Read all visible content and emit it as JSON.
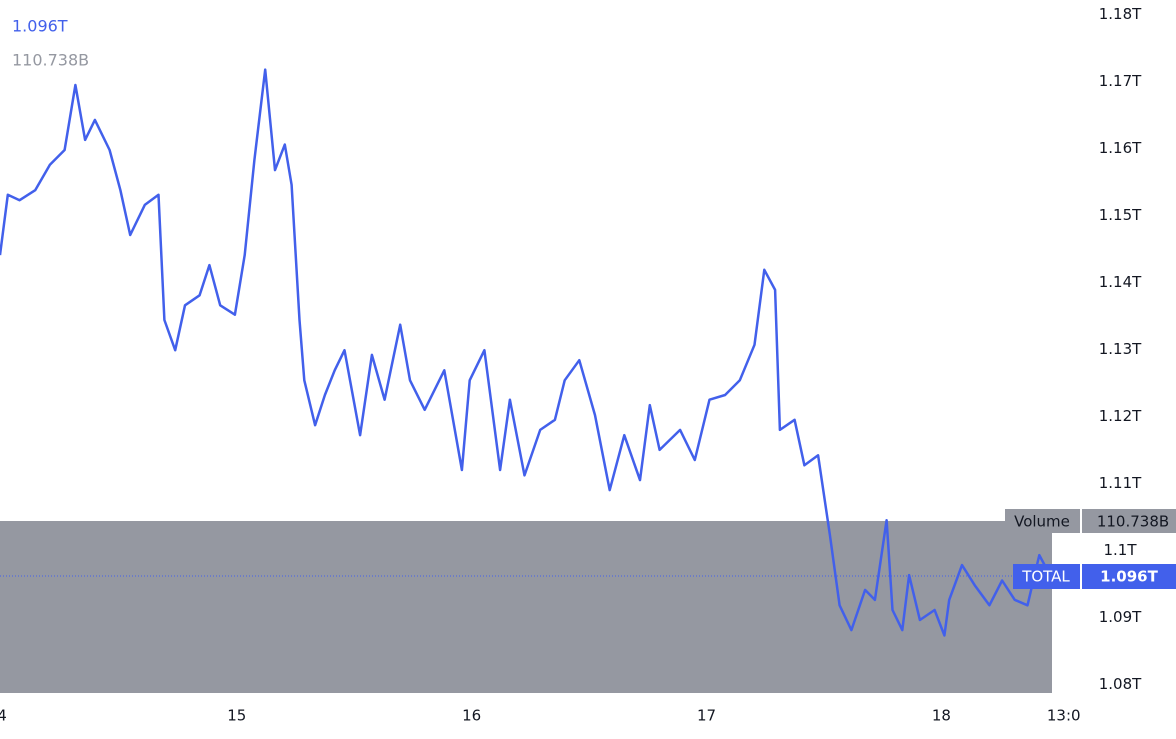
{
  "chart_data": {
    "type": "line",
    "legend_values": [
      "1.096T",
      "110.738B"
    ],
    "volume_label": {
      "name": "Volume",
      "value": "110.738B"
    },
    "price_label": {
      "name": "TOTAL",
      "value": "1.096T"
    },
    "x": [
      -0.2,
      0.6,
      1.8,
      3.4,
      4.9,
      6.4,
      7.5,
      8.5,
      9.5,
      11.0,
      12.1,
      13.1,
      14.6,
      16.0,
      16.6,
      17.7,
      18.7,
      20.2,
      21.2,
      22.3,
      23.8,
      24.8,
      25.8,
      26.9,
      27.9,
      28.9,
      29.6,
      30.4,
      30.9,
      32.0,
      33.0,
      34.0,
      35.0,
      36.6,
      37.8,
      39.1,
      40.7,
      41.7,
      43.2,
      45.2,
      47.0,
      47.8,
      49.3,
      50.9,
      51.9,
      53.4,
      55.0,
      56.5,
      57.5,
      59.0,
      60.6,
      62.1,
      63.6,
      65.2,
      66.2,
      67.2,
      69.3,
      70.8,
      72.3,
      73.9,
      75.4,
      76.9,
      77.9,
      79.0,
      79.5,
      81.0,
      82.0,
      83.4,
      84.6,
      85.6,
      86.8,
      88.2,
      89.2,
      90.4,
      91.0,
      92.0,
      92.7,
      93.8,
      95.3,
      96.3,
      96.8,
      98.1,
      99.4,
      100.9,
      102.2,
      103.5,
      104.8,
      106.0,
      107.1
    ],
    "series": [
      {
        "name": "TOTAL",
        "color": "#4260eb",
        "values": [
          1.1441,
          1.1531,
          1.1523,
          1.1538,
          1.1576,
          1.1598,
          1.1695,
          1.1613,
          1.1643,
          1.1598,
          1.1538,
          1.1471,
          1.1516,
          1.1531,
          1.1344,
          1.1299,
          1.1366,
          1.1381,
          1.1426,
          1.1366,
          1.1352,
          1.1441,
          1.1583,
          1.1718,
          1.1568,
          1.1606,
          1.1546,
          1.1344,
          1.1254,
          1.1187,
          1.1232,
          1.1269,
          1.1299,
          1.1172,
          1.1292,
          1.1225,
          1.1337,
          1.1254,
          1.121,
          1.1269,
          1.112,
          1.1254,
          1.1299,
          1.112,
          1.1225,
          1.1112,
          1.118,
          1.1195,
          1.1254,
          1.1284,
          1.1202,
          1.109,
          1.1172,
          1.1105,
          1.1217,
          1.115,
          1.118,
          1.1135,
          1.1225,
          1.1232,
          1.1254,
          1.1307,
          1.1419,
          1.1389,
          1.118,
          1.1195,
          1.1127,
          1.1142,
          1.1023,
          1.0918,
          1.0881,
          1.0941,
          1.0926,
          1.1045,
          1.0911,
          1.0881,
          1.0963,
          1.0896,
          1.0911,
          1.0873,
          1.0926,
          1.0978,
          1.0948,
          1.0918,
          1.0955,
          1.0926,
          1.0918,
          1.0993,
          1.0963
        ]
      }
    ],
    "xlim": [
      -0.2,
      107.3
    ],
    "xticks": [
      {
        "value": 0,
        "label": "4"
      },
      {
        "value": 24,
        "label": "15"
      },
      {
        "value": 48,
        "label": "16"
      },
      {
        "value": 72,
        "label": "17"
      },
      {
        "value": 96,
        "label": "18"
      },
      {
        "value": 108.5,
        "label": "13:0"
      }
    ],
    "ylim": [
      1.0784,
      1.1822
    ],
    "yticks": [
      {
        "value": 1.18,
        "label": "1.18T"
      },
      {
        "value": 1.17,
        "label": "1.17T"
      },
      {
        "value": 1.16,
        "label": "1.16T"
      },
      {
        "value": 1.15,
        "label": "1.15T"
      },
      {
        "value": 1.14,
        "label": "1.14T"
      },
      {
        "value": 1.13,
        "label": "1.13T"
      },
      {
        "value": 1.12,
        "label": "1.12T"
      },
      {
        "value": 1.11,
        "label": "1.11T"
      },
      {
        "value": 1.1,
        "label": "1.1T"
      },
      {
        "value": 1.09,
        "label": "1.09T"
      },
      {
        "value": 1.08,
        "label": "1.08T"
      }
    ]
  }
}
